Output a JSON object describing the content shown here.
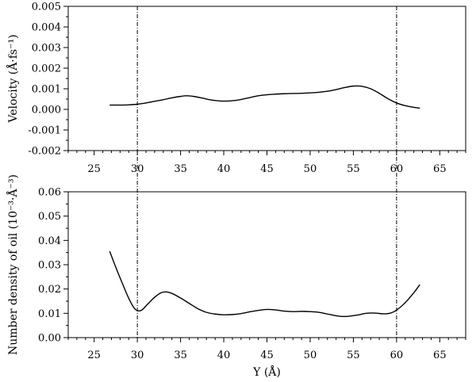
{
  "chart_data": [
    {
      "type": "line",
      "ylabel": "Velocity (Å·fs⁻¹)",
      "xlabel": "",
      "xlim": [
        22,
        68
      ],
      "ylim": [
        -0.002,
        0.005
      ],
      "xticks": [
        "25",
        "30",
        "35",
        "40",
        "45",
        "50",
        "55",
        "60",
        "65"
      ],
      "yticks": [
        "-0.002",
        "-0.001",
        "0.000",
        "0.001",
        "0.002",
        "0.003",
        "0.004",
        "0.005"
      ],
      "grid": false,
      "series": [
        {
          "x": [
            26.8,
            28,
            29,
            30,
            31,
            32,
            33,
            34,
            35,
            35.7,
            36.5,
            37.5,
            38.5,
            39.5,
            40,
            41,
            42,
            43,
            44,
            45,
            46,
            47,
            48,
            49,
            50,
            51,
            52,
            53,
            54,
            55,
            56,
            57,
            58,
            59,
            60,
            61,
            62,
            62.7
          ],
          "y": [
            0.00021,
            0.00021,
            0.00022,
            0.00025,
            0.00031,
            0.00039,
            0.00047,
            0.00056,
            0.00063,
            0.00066,
            0.00063,
            0.00055,
            0.00046,
            0.00041,
            0.0004,
            0.00042,
            0.00048,
            0.00057,
            0.00066,
            0.00071,
            0.00074,
            0.00076,
            0.00077,
            0.00078,
            0.0008,
            0.00083,
            0.00088,
            0.00096,
            0.00106,
            0.00113,
            0.00112,
            0.001,
            0.00078,
            0.00052,
            0.00031,
            0.00018,
            0.0001,
            6e-05
          ]
        }
      ],
      "reference_lines_x": [
        30,
        60
      ]
    },
    {
      "type": "line",
      "ylabel": "Number density of oil (10⁻³·Å⁻³)",
      "xlabel": "Y (Å)",
      "xlim": [
        22,
        68
      ],
      "ylim": [
        0,
        0.06
      ],
      "xticks": [
        "25",
        "30",
        "35",
        "40",
        "45",
        "50",
        "55",
        "60",
        "65"
      ],
      "yticks": [
        "0.00",
        "0.01",
        "0.02",
        "0.03",
        "0.04",
        "0.05",
        "0.06"
      ],
      "grid": false,
      "series": [
        {
          "x": [
            26.8,
            27.5,
            28.3,
            29,
            29.6,
            30,
            30.5,
            31.2,
            32,
            32.7,
            33.3,
            34,
            35,
            36,
            37,
            38,
            39,
            40,
            41,
            42,
            43,
            44,
            45,
            46,
            47,
            48,
            49,
            50,
            51,
            52,
            53,
            53.7,
            54.5,
            55.5,
            56.5,
            57.5,
            58.5,
            59.3,
            60,
            61,
            62,
            62.7
          ],
          "y": [
            0.0355,
            0.029,
            0.022,
            0.0162,
            0.0123,
            0.0111,
            0.0113,
            0.0138,
            0.0166,
            0.0184,
            0.0188,
            0.0182,
            0.0163,
            0.0141,
            0.0119,
            0.0104,
            0.0097,
            0.0094,
            0.0095,
            0.0099,
            0.0106,
            0.0112,
            0.0116,
            0.0114,
            0.0109,
            0.0107,
            0.0108,
            0.0107,
            0.0104,
            0.0097,
            0.009,
            0.0087,
            0.0088,
            0.0093,
            0.01,
            0.0101,
            0.0098,
            0.0101,
            0.0113,
            0.0144,
            0.0185,
            0.0218
          ]
        }
      ],
      "reference_lines_x": [
        30,
        60
      ]
    }
  ]
}
